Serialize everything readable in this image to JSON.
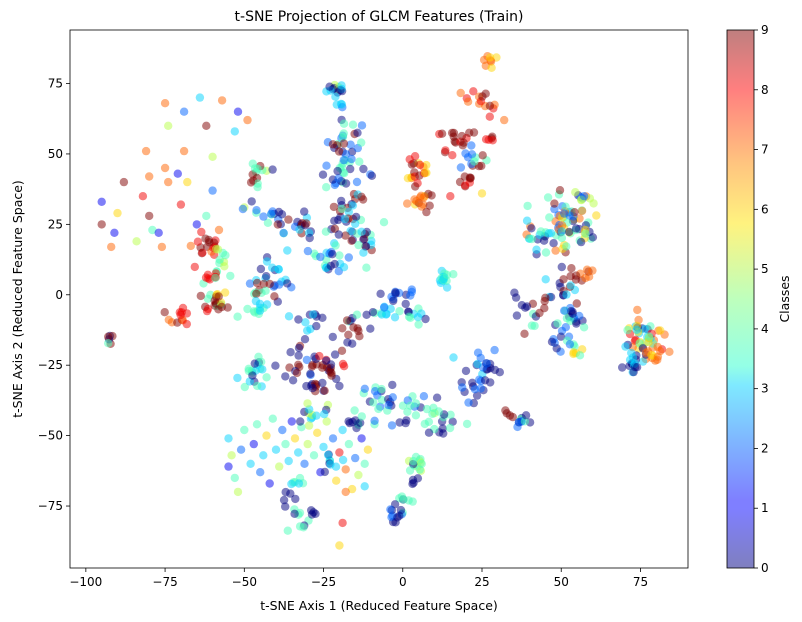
{
  "chart_data": {
    "type": "scatter",
    "title": "t-SNE Projection of GLCM Features (Train)",
    "xlabel": "t-SNE Axis 1 (Reduced Feature Space)",
    "ylabel": "t-SNE Axis 2 (Reduced Feature Space)",
    "xlim": [
      -105,
      90
    ],
    "ylim": [
      -97,
      94
    ],
    "xticks": [
      -100,
      -75,
      -50,
      -25,
      0,
      25,
      50,
      75
    ],
    "yticks": [
      -75,
      -50,
      -25,
      0,
      25,
      50,
      75
    ],
    "grid": false,
    "colormap": "jet",
    "point_alpha": 0.5,
    "colorbar": {
      "label": "Classes",
      "range": [
        0,
        9
      ],
      "ticks": [
        0,
        1,
        2,
        3,
        4,
        5,
        6,
        7,
        8,
        9
      ],
      "placement": "right"
    },
    "clusters": [
      {
        "x": -21,
        "y": 73,
        "spread": 1.5,
        "n": 14,
        "classes": [
          3,
          0,
          5
        ]
      },
      {
        "x": -20,
        "y": 68,
        "spread": 0.8,
        "n": 4,
        "classes": [
          3,
          2
        ]
      },
      {
        "x": -18,
        "y": 55,
        "spread": 3.5,
        "n": 26,
        "classes": [
          0,
          4,
          9,
          2
        ]
      },
      {
        "x": -19,
        "y": 42,
        "spread": 3.5,
        "n": 22,
        "classes": [
          2,
          0,
          4
        ]
      },
      {
        "x": -18,
        "y": 28,
        "spread": 4,
        "n": 30,
        "classes": [
          0,
          9,
          4,
          3
        ]
      },
      {
        "x": -13,
        "y": 20,
        "spread": 3,
        "n": 18,
        "classes": [
          3,
          4,
          9,
          0
        ]
      },
      {
        "x": -23,
        "y": 14,
        "spread": 4,
        "n": 24,
        "classes": [
          0,
          3,
          2,
          4
        ]
      },
      {
        "x": -40,
        "y": 27,
        "spread": 3,
        "n": 20,
        "classes": [
          0,
          4,
          2,
          9
        ]
      },
      {
        "x": -31,
        "y": 25,
        "spread": 2,
        "n": 12,
        "classes": [
          0,
          9,
          3
        ]
      },
      {
        "x": -40,
        "y": 6,
        "spread": 3.5,
        "n": 20,
        "classes": [
          0,
          2,
          3
        ]
      },
      {
        "x": -44,
        "y": 2,
        "spread": 2,
        "n": 10,
        "classes": [
          4,
          9
        ]
      },
      {
        "x": -46,
        "y": -5,
        "spread": 1.8,
        "n": 12,
        "classes": [
          4,
          3,
          2
        ]
      },
      {
        "x": -30,
        "y": -9,
        "spread": 3,
        "n": 12,
        "classes": [
          0,
          3
        ]
      },
      {
        "x": -18,
        "y": -12,
        "spread": 3,
        "n": 14,
        "classes": [
          9,
          0,
          4
        ]
      },
      {
        "x": -8,
        "y": -7,
        "spread": 3,
        "n": 12,
        "classes": [
          0,
          4,
          3
        ]
      },
      {
        "x": -3,
        "y": -1,
        "spread": 3,
        "n": 14,
        "classes": [
          0,
          2
        ]
      },
      {
        "x": 4,
        "y": -8,
        "spread": 1.8,
        "n": 10,
        "classes": [
          4,
          0,
          3
        ]
      },
      {
        "x": 13,
        "y": 5,
        "spread": 1.8,
        "n": 14,
        "classes": [
          4,
          3
        ]
      },
      {
        "x": -46,
        "y": 45,
        "spread": 1.5,
        "n": 8,
        "classes": [
          0,
          4,
          9
        ]
      },
      {
        "x": -46,
        "y": 40,
        "spread": 1.2,
        "n": 5,
        "classes": [
          9,
          4
        ]
      },
      {
        "x": -63,
        "y": 17,
        "spread": 2.5,
        "n": 18,
        "classes": [
          9,
          7,
          8
        ]
      },
      {
        "x": -61,
        "y": 7,
        "spread": 2,
        "n": 10,
        "classes": [
          8,
          4
        ]
      },
      {
        "x": -58,
        "y": 12,
        "spread": 2,
        "n": 10,
        "classes": [
          4,
          5
        ]
      },
      {
        "x": -60,
        "y": -3,
        "spread": 2,
        "n": 14,
        "classes": [
          9,
          4,
          8
        ]
      },
      {
        "x": -58,
        "y": -1,
        "spread": 1.5,
        "n": 8,
        "classes": [
          9,
          6
        ]
      },
      {
        "x": -70,
        "y": -8,
        "spread": 1.8,
        "n": 12,
        "classes": [
          9,
          7,
          8
        ]
      },
      {
        "x": -92,
        "y": -16,
        "spread": 1.2,
        "n": 6,
        "classes": [
          9,
          4,
          0
        ]
      },
      {
        "x": -47,
        "y": -28,
        "spread": 2.5,
        "n": 20,
        "classes": [
          0,
          4,
          3
        ]
      },
      {
        "x": -33,
        "y": -23,
        "spread": 3.5,
        "n": 18,
        "classes": [
          0,
          2,
          9
        ]
      },
      {
        "x": -23,
        "y": -26,
        "spread": 3.5,
        "n": 22,
        "classes": [
          9,
          8,
          0
        ]
      },
      {
        "x": -28,
        "y": -32,
        "spread": 2,
        "n": 10,
        "classes": [
          0,
          9
        ]
      },
      {
        "x": -30,
        "y": -42,
        "spread": 2.5,
        "n": 12,
        "classes": [
          0,
          3,
          5
        ]
      },
      {
        "x": -16,
        "y": -45,
        "spread": 2,
        "n": 10,
        "classes": [
          0,
          4
        ]
      },
      {
        "x": -8,
        "y": -38,
        "spread": 4,
        "n": 22,
        "classes": [
          0,
          2,
          4
        ]
      },
      {
        "x": 5,
        "y": -42,
        "spread": 3.5,
        "n": 18,
        "classes": [
          0,
          4,
          2
        ]
      },
      {
        "x": 12,
        "y": -45,
        "spread": 3,
        "n": 14,
        "classes": [
          0,
          4
        ]
      },
      {
        "x": 5,
        "y": -60,
        "spread": 2,
        "n": 12,
        "classes": [
          0,
          4,
          5
        ]
      },
      {
        "x": 3,
        "y": -67,
        "spread": 1,
        "n": 4,
        "classes": [
          0
        ]
      },
      {
        "x": 0,
        "y": -73,
        "spread": 1.5,
        "n": 8,
        "classes": [
          0,
          4
        ]
      },
      {
        "x": -3,
        "y": -78,
        "spread": 1.5,
        "n": 10,
        "classes": [
          0,
          2
        ]
      },
      {
        "x": -33,
        "y": -66,
        "spread": 1.5,
        "n": 6,
        "classes": [
          3,
          4
        ]
      },
      {
        "x": -34,
        "y": -77,
        "spread": 2,
        "n": 10,
        "classes": [
          0,
          4,
          7
        ]
      },
      {
        "x": -36,
        "y": -71,
        "spread": 1,
        "n": 4,
        "classes": [
          0
        ]
      },
      {
        "x": -22,
        "y": -60,
        "spread": 2.5,
        "n": 8,
        "classes": [
          0,
          3
        ]
      },
      {
        "x": -28,
        "y": -77,
        "spread": 0.8,
        "n": 4,
        "classes": [
          0
        ]
      },
      {
        "x": 5,
        "y": 42,
        "spread": 3.5,
        "n": 22,
        "classes": [
          9,
          6,
          7,
          8
        ]
      },
      {
        "x": 5,
        "y": 33,
        "spread": 2,
        "n": 12,
        "classes": [
          9,
          7
        ]
      },
      {
        "x": 17,
        "y": 55,
        "spread": 3,
        "n": 16,
        "classes": [
          9,
          8
        ]
      },
      {
        "x": 22,
        "y": 49,
        "spread": 2.5,
        "n": 14,
        "classes": [
          0,
          4,
          9,
          2
        ]
      },
      {
        "x": 25,
        "y": 68,
        "spread": 3,
        "n": 14,
        "classes": [
          8,
          7,
          9
        ]
      },
      {
        "x": 27,
        "y": 83,
        "spread": 1.2,
        "n": 8,
        "classes": [
          7,
          6
        ]
      },
      {
        "x": 28,
        "y": 55,
        "spread": 1,
        "n": 5,
        "classes": [
          9,
          8
        ]
      },
      {
        "x": 20,
        "y": 40,
        "spread": 1.5,
        "n": 8,
        "classes": [
          9,
          8
        ]
      },
      {
        "x": 52,
        "y": 28,
        "spread": 4,
        "n": 40,
        "classes": [
          9,
          2,
          0,
          4,
          6,
          7
        ]
      },
      {
        "x": 44,
        "y": 21,
        "spread": 3,
        "n": 24,
        "classes": [
          3,
          4,
          0,
          7
        ]
      },
      {
        "x": 55,
        "y": 22,
        "spread": 3,
        "n": 18,
        "classes": [
          6,
          4,
          0
        ]
      },
      {
        "x": 57,
        "y": 34,
        "spread": 1.5,
        "n": 8,
        "classes": [
          2,
          5
        ]
      },
      {
        "x": 50,
        "y": 2,
        "spread": 3,
        "n": 16,
        "classes": [
          9,
          0,
          3
        ]
      },
      {
        "x": 57,
        "y": 7,
        "spread": 2,
        "n": 10,
        "classes": [
          9,
          7
        ]
      },
      {
        "x": 40,
        "y": -6,
        "spread": 3,
        "n": 16,
        "classes": [
          0,
          4,
          9
        ]
      },
      {
        "x": 53,
        "y": -10,
        "spread": 3.5,
        "n": 22,
        "classes": [
          0,
          2,
          4
        ]
      },
      {
        "x": 55,
        "y": -20,
        "spread": 1.5,
        "n": 8,
        "classes": [
          4,
          6
        ]
      },
      {
        "x": 49,
        "y": -18,
        "spread": 1.5,
        "n": 6,
        "classes": [
          0,
          2
        ]
      },
      {
        "x": 26,
        "y": -25,
        "spread": 3,
        "n": 18,
        "classes": [
          0,
          2,
          3
        ]
      },
      {
        "x": 23,
        "y": -33,
        "spread": 2.5,
        "n": 14,
        "classes": [
          0,
          2
        ]
      },
      {
        "x": 33,
        "y": -43,
        "spread": 1,
        "n": 4,
        "classes": [
          9
        ]
      },
      {
        "x": 38,
        "y": -45,
        "spread": 1.5,
        "n": 10,
        "classes": [
          0,
          2,
          4
        ]
      },
      {
        "x": 76,
        "y": -15,
        "spread": 3.5,
        "n": 40,
        "classes": [
          6,
          8,
          4,
          0,
          3,
          7
        ]
      },
      {
        "x": 73,
        "y": -24,
        "spread": 2.5,
        "n": 18,
        "classes": [
          0,
          3
        ]
      },
      {
        "x": 80,
        "y": -20,
        "spread": 2,
        "n": 10,
        "classes": [
          7,
          6
        ]
      }
    ],
    "sparse_points": [
      {
        "x": -95,
        "y": 33,
        "c": 1
      },
      {
        "x": -95,
        "y": 25,
        "c": 9
      },
      {
        "x": -91,
        "y": 22,
        "c": 1
      },
      {
        "x": -92,
        "y": 17,
        "c": 7
      },
      {
        "x": -90,
        "y": 29,
        "c": 6
      },
      {
        "x": -88,
        "y": 40,
        "c": 9
      },
      {
        "x": -84,
        "y": 19,
        "c": 5
      },
      {
        "x": -82,
        "y": 35,
        "c": 8
      },
      {
        "x": -81,
        "y": 51,
        "c": 7
      },
      {
        "x": -80,
        "y": 28,
        "c": 9
      },
      {
        "x": -80,
        "y": 42,
        "c": 7
      },
      {
        "x": -79,
        "y": 23,
        "c": 4
      },
      {
        "x": -76,
        "y": 17,
        "c": 7
      },
      {
        "x": -77,
        "y": 22,
        "c": 1
      },
      {
        "x": -75,
        "y": 45,
        "c": 7
      },
      {
        "x": -75,
        "y": 68,
        "c": 7
      },
      {
        "x": -74,
        "y": 40,
        "c": 7
      },
      {
        "x": -74,
        "y": 60,
        "c": 5
      },
      {
        "x": -71,
        "y": 43,
        "c": 1
      },
      {
        "x": -70,
        "y": 32,
        "c": 8
      },
      {
        "x": -69,
        "y": 51,
        "c": 7
      },
      {
        "x": -69,
        "y": 65,
        "c": 2
      },
      {
        "x": -68,
        "y": 40,
        "c": 6
      },
      {
        "x": -65,
        "y": 25,
        "c": 1
      },
      {
        "x": -64,
        "y": 70,
        "c": 3
      },
      {
        "x": -62,
        "y": 60,
        "c": 9
      },
      {
        "x": -62,
        "y": 28,
        "c": 4
      },
      {
        "x": -60,
        "y": 49,
        "c": 5
      },
      {
        "x": -60,
        "y": 37,
        "c": 2
      },
      {
        "x": -58,
        "y": 23,
        "c": 7
      },
      {
        "x": -57,
        "y": 69,
        "c": 7
      },
      {
        "x": -53,
        "y": 58,
        "c": 3
      },
      {
        "x": -52,
        "y": 65,
        "c": 1
      },
      {
        "x": -50,
        "y": 31,
        "c": 5
      },
      {
        "x": -49,
        "y": 62,
        "c": 7
      },
      {
        "x": -43,
        "y": 44,
        "c": 5
      },
      {
        "x": -55,
        "y": -61,
        "c": 1
      },
      {
        "x": -55,
        "y": -51,
        "c": 3
      },
      {
        "x": -54,
        "y": -57,
        "c": 5
      },
      {
        "x": -53,
        "y": -65,
        "c": 4
      },
      {
        "x": -52,
        "y": -70,
        "c": 5
      },
      {
        "x": -51,
        "y": -55,
        "c": 2
      },
      {
        "x": -50,
        "y": -48,
        "c": 4
      },
      {
        "x": -48,
        "y": -60,
        "c": 3
      },
      {
        "x": -47,
        "y": -53,
        "c": 1
      },
      {
        "x": -46,
        "y": -46,
        "c": 4
      },
      {
        "x": -45,
        "y": -63,
        "c": 2
      },
      {
        "x": -44,
        "y": -57,
        "c": 3
      },
      {
        "x": -43,
        "y": -50,
        "c": 6
      },
      {
        "x": -42,
        "y": -67,
        "c": 1
      },
      {
        "x": -41,
        "y": -44,
        "c": 4
      },
      {
        "x": -40,
        "y": -55,
        "c": 3
      },
      {
        "x": -39,
        "y": -61,
        "c": 5
      },
      {
        "x": -38,
        "y": -48,
        "c": 2
      },
      {
        "x": -37,
        "y": -53,
        "c": 4
      },
      {
        "x": -36,
        "y": -59,
        "c": 3
      },
      {
        "x": -35,
        "y": -45,
        "c": 1
      },
      {
        "x": -34,
        "y": -51,
        "c": 6
      },
      {
        "x": -33,
        "y": -56,
        "c": 3
      },
      {
        "x": -32,
        "y": -47,
        "c": 4
      },
      {
        "x": -31,
        "y": -60,
        "c": 2
      },
      {
        "x": -30,
        "y": -53,
        "c": 5
      },
      {
        "x": -29,
        "y": -44,
        "c": 3
      },
      {
        "x": -28,
        "y": -57,
        "c": 4
      },
      {
        "x": -27,
        "y": -49,
        "c": 6
      },
      {
        "x": -26,
        "y": -63,
        "c": 1
      },
      {
        "x": -25,
        "y": -54,
        "c": 3
      },
      {
        "x": -24,
        "y": -45,
        "c": 5
      },
      {
        "x": -23,
        "y": -59,
        "c": 4
      },
      {
        "x": -22,
        "y": -51,
        "c": 2
      },
      {
        "x": -21,
        "y": -66,
        "c": 6
      },
      {
        "x": -20,
        "y": -56,
        "c": 8
      },
      {
        "x": -19,
        "y": -48,
        "c": 3
      },
      {
        "x": -18,
        "y": -62,
        "c": 7
      },
      {
        "x": -17,
        "y": -53,
        "c": 4
      },
      {
        "x": -16,
        "y": -69,
        "c": 6
      },
      {
        "x": -15,
        "y": -58,
        "c": 2
      },
      {
        "x": -14,
        "y": -64,
        "c": 5
      },
      {
        "x": -13,
        "y": -51,
        "c": 1
      },
      {
        "x": -12,
        "y": -60,
        "c": 4
      },
      {
        "x": -11,
        "y": -55,
        "c": 6
      },
      {
        "x": -19,
        "y": -81,
        "c": 8
      },
      {
        "x": -20,
        "y": -89,
        "c": 6
      },
      {
        "x": -18,
        "y": -70,
        "c": 7
      },
      {
        "x": -12,
        "y": -68,
        "c": 3
      },
      {
        "x": 10,
        "y": -42,
        "c": 5
      },
      {
        "x": 2,
        "y": -59,
        "c": 5
      },
      {
        "x": 32,
        "y": 62,
        "c": 7
      },
      {
        "x": 25,
        "y": 36,
        "c": 6
      },
      {
        "x": 15,
        "y": 35,
        "c": 8
      }
    ]
  }
}
